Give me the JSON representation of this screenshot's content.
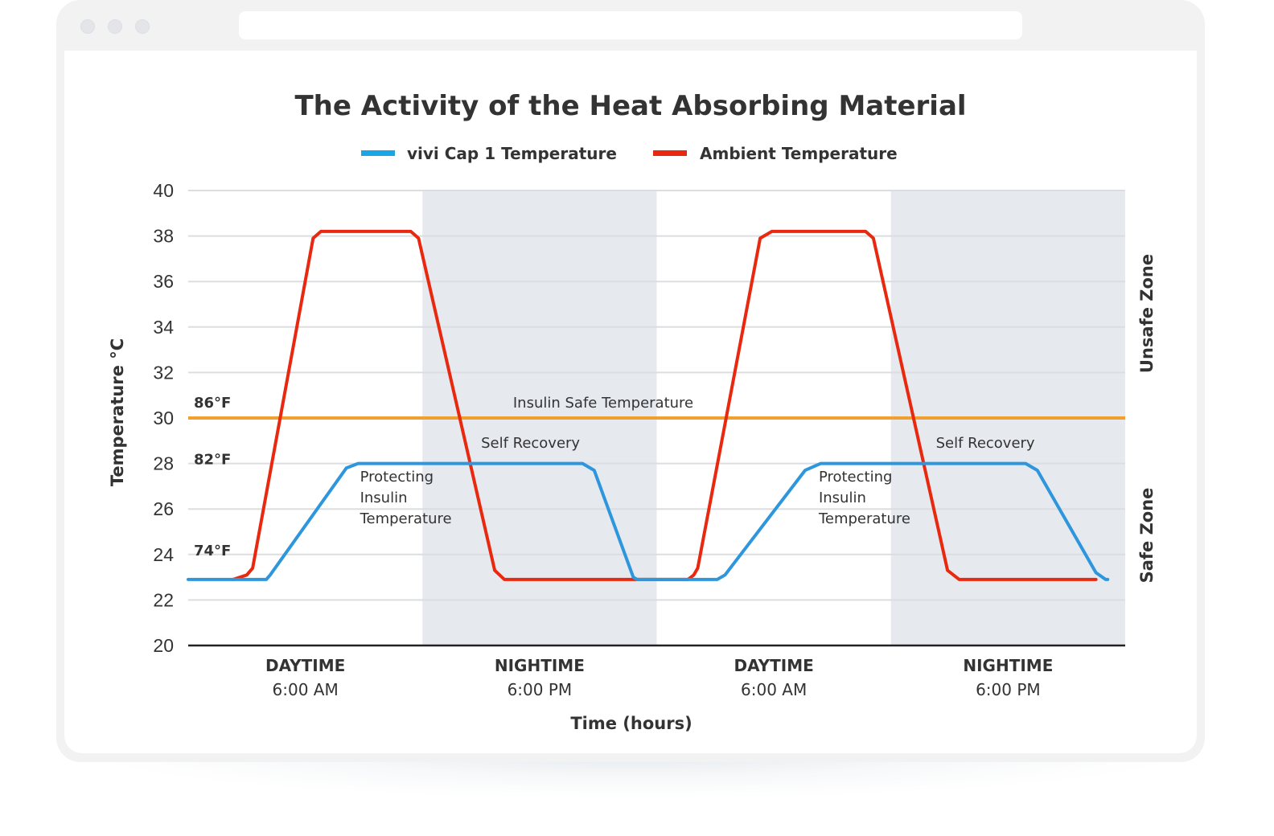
{
  "window": {
    "controls": [
      "close",
      "minimize",
      "maximize"
    ],
    "address_bar": ""
  },
  "chart_data": {
    "type": "line",
    "title": "The Activity of the Heat Absorbing Material",
    "xlabel": "Time (hours)",
    "ylabel": "Temperature °C",
    "xlim": [
      0,
      48
    ],
    "ylim": [
      20,
      40
    ],
    "y_ticks": [
      20,
      22,
      24,
      26,
      28,
      30,
      32,
      34,
      36,
      38,
      40
    ],
    "grid": true,
    "legend_position": "top-center",
    "x_categories": [
      {
        "x": 6,
        "period": "DAYTIME",
        "time": "6:00 AM"
      },
      {
        "x": 18,
        "period": "NIGHTIME",
        "time": "6:00 PM"
      },
      {
        "x": 30,
        "period": "DAYTIME",
        "time": "6:00 AM"
      },
      {
        "x": 42,
        "period": "NIGHTIME",
        "time": "6:00 PM"
      }
    ],
    "night_bands": [
      [
        12,
        24
      ],
      [
        36,
        48
      ]
    ],
    "series": [
      {
        "name": "vivi Cap 1 Temperature",
        "color": "#2e96dc",
        "points": [
          [
            0,
            22.9
          ],
          [
            4.0,
            22.9
          ],
          [
            4.2,
            23.1
          ],
          [
            8.1,
            27.8
          ],
          [
            8.7,
            28.0
          ],
          [
            20.2,
            28.0
          ],
          [
            20.8,
            27.7
          ],
          [
            22.8,
            23.0
          ],
          [
            23.0,
            22.9
          ],
          [
            27.1,
            22.9
          ],
          [
            27.5,
            23.1
          ],
          [
            31.6,
            27.7
          ],
          [
            32.4,
            28.0
          ],
          [
            42.9,
            28.0
          ],
          [
            43.5,
            27.7
          ],
          [
            46.5,
            23.2
          ],
          [
            47.0,
            22.9
          ],
          [
            47.1,
            22.9
          ]
        ]
      },
      {
        "name": "Ambient Temperature",
        "color": "#e8290f",
        "points": [
          [
            2.3,
            22.9
          ],
          [
            3.0,
            23.1
          ],
          [
            3.3,
            23.4
          ],
          [
            6.4,
            37.9
          ],
          [
            6.8,
            38.2
          ],
          [
            11.4,
            38.2
          ],
          [
            11.8,
            37.9
          ],
          [
            15.7,
            23.3
          ],
          [
            16.2,
            22.9
          ],
          [
            25.6,
            22.9
          ],
          [
            25.9,
            23.1
          ],
          [
            26.1,
            23.4
          ],
          [
            29.3,
            37.9
          ],
          [
            29.9,
            38.2
          ],
          [
            34.7,
            38.2
          ],
          [
            35.1,
            37.9
          ],
          [
            38.9,
            23.3
          ],
          [
            39.5,
            22.9
          ],
          [
            46.5,
            22.9
          ]
        ]
      }
    ],
    "reference_line": {
      "label": "Insulin Safe Temperature",
      "y": 30,
      "color": "#f0a030"
    },
    "fahrenheit_labels": [
      {
        "y": 30,
        "text": "86°F"
      },
      {
        "y": 28,
        "text": "82°F"
      },
      {
        "y": 23.5,
        "text": "74°F"
      }
    ],
    "annotations": [
      {
        "lines": [
          "Protecting",
          "Insulin",
          "Temperature"
        ],
        "x": 8.8,
        "y": 27.2
      },
      {
        "lines": [
          "Self Recovery"
        ],
        "x": 15.0,
        "y": 28.7
      },
      {
        "lines": [
          "Protecting",
          "Insulin",
          "Temperature"
        ],
        "x": 32.3,
        "y": 27.2
      },
      {
        "lines": [
          "Self Recovery"
        ],
        "x": 38.3,
        "y": 28.7
      }
    ],
    "zone_labels": {
      "unsafe": "Unsafe Zone",
      "safe": "Safe Zone"
    },
    "colors": {
      "band": "#e6e9ee",
      "grid": "#dcdde0",
      "axis": "#222222",
      "text": "#333333"
    }
  }
}
